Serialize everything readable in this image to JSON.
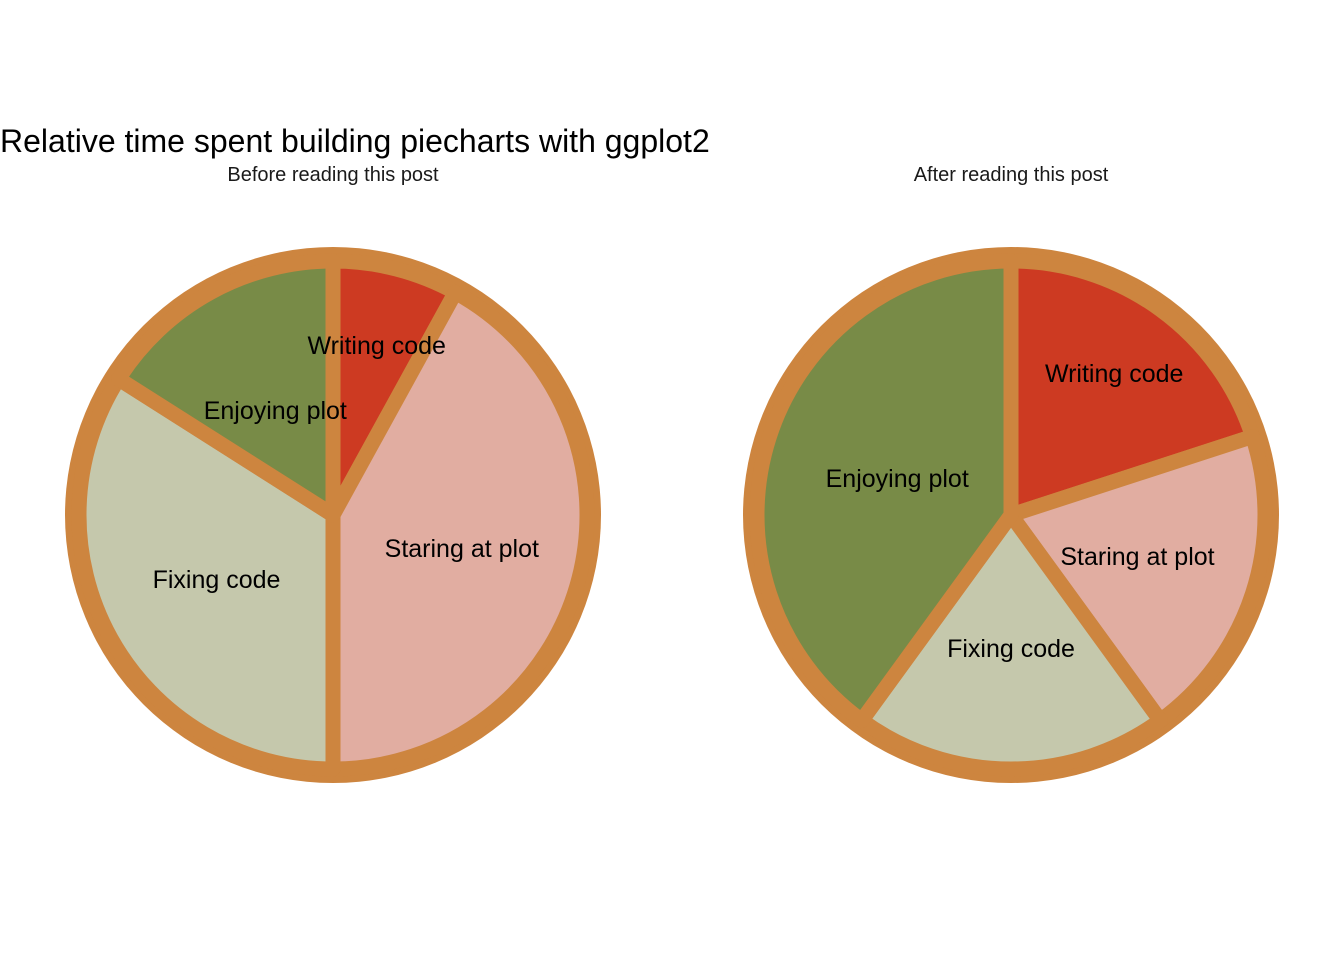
{
  "chart_data": {
    "type": "pie",
    "title": "Relative time spent building piecharts with ggplot2",
    "categories": [
      "Writing code",
      "Staring at plot",
      "Fixing code",
      "Enjoying plot"
    ],
    "colors": {
      "Writing code": "#CD3A22",
      "Staring at plot": "#E1ADA1",
      "Fixing code": "#C5C8AC",
      "Enjoying plot": "#788B47"
    },
    "border_color": "#CD853F",
    "panels": [
      {
        "label": "Before reading this post",
        "values": [
          0.08,
          0.42,
          0.34,
          0.16
        ]
      },
      {
        "label": "After reading this post",
        "values": [
          0.2,
          0.2,
          0.2,
          0.4
        ]
      }
    ],
    "legend": "none",
    "grid": false
  }
}
